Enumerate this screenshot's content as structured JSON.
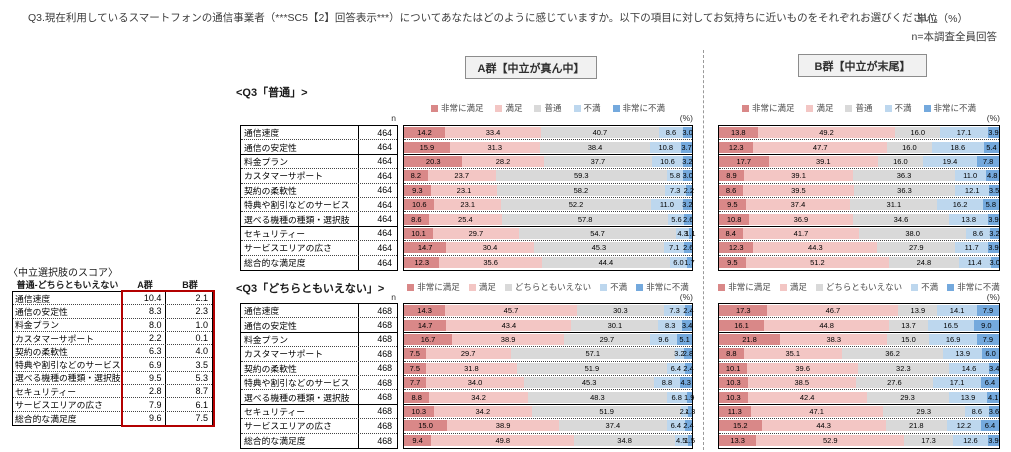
{
  "page": {
    "title": "Q3.現在利用しているスマートフォンの通信事業者（***SC5【2】回答表示***）についてあなたはどのように感じていますか。以下の項目に対してお気持ちに近いものをそれぞれお選びください。",
    "unit_label": "単位（%）",
    "n_note": "n=本調査全員回答",
    "group_a_header": "A群【中立が真ん中】",
    "group_b_header": "B群【中立が末尾】",
    "n_col_header": "n",
    "pct_label": "(%)"
  },
  "colors": {
    "series": [
      "#D98888",
      "#F3C6C4",
      "#D9D9D9",
      "#BDD7EE",
      "#74A9DD"
    ],
    "score_box_border": "#B30000",
    "header_box_bg": "#F1F1F1",
    "header_box_border": "#8C8C8C"
  },
  "score_table": {
    "title": "〈中立選択肢のスコア〉",
    "col_header": "普通-どちらともいえない",
    "col_a": "A群",
    "col_b": "B群",
    "rows": [
      {
        "label": "通信速度",
        "a": 10.4,
        "b": 2.1
      },
      {
        "label": "通信の安定性",
        "a": 8.3,
        "b": 2.3
      },
      {
        "label": "料金プラン",
        "a": 8.0,
        "b": 1.0
      },
      {
        "label": "カスタマーサポート",
        "a": 2.2,
        "b": 0.1
      },
      {
        "label": "契約の柔軟性",
        "a": 6.3,
        "b": 4.0
      },
      {
        "label": "特典や割引などのサービス",
        "a": 6.9,
        "b": 3.5
      },
      {
        "label": "選べる機種の種類・選択肢",
        "a": 9.5,
        "b": 5.3
      },
      {
        "label": "セキュリティー",
        "a": 2.8,
        "b": 8.7
      },
      {
        "label": "サービスエリアの広さ",
        "a": 7.9,
        "b": 6.1
      },
      {
        "label": "総合的な満足度",
        "a": 9.6,
        "b": 7.5
      }
    ]
  },
  "chart_data": [
    {
      "type": "bar",
      "subtype": "stacked-horizontal-100pct",
      "title": "<Q3「普通」>",
      "legend": [
        "非常に満足",
        "満足",
        "普通",
        "不満",
        "非常に不満"
      ],
      "n": 464,
      "unit": "%",
      "group_separators_after": [
        1,
        6
      ],
      "categories": [
        "通信速度",
        "通信の安定性",
        "料金プラン",
        "カスタマーサポート",
        "契約の柔軟性",
        "特典や割引などのサービス",
        "選べる機種の種類・選択肢",
        "セキュリティー",
        "サービスエリアの広さ",
        "総合的な満足度"
      ],
      "panels": [
        {
          "panel": "A群【中立が真ん中】",
          "rows": [
            [
              14.2,
              33.4,
              40.7,
              8.6,
              3.0
            ],
            [
              15.9,
              31.3,
              38.4,
              10.8,
              3.7
            ],
            [
              20.3,
              28.2,
              37.7,
              10.6,
              3.2
            ],
            [
              8.2,
              23.7,
              59.3,
              5.8,
              3.0
            ],
            [
              9.3,
              23.1,
              58.2,
              7.3,
              2.2
            ],
            [
              10.6,
              23.1,
              52.2,
              11.0,
              3.2
            ],
            [
              8.6,
              25.4,
              57.8,
              5.6,
              2.6
            ],
            [
              10.1,
              29.7,
              54.7,
              4.3,
              1.1
            ],
            [
              14.7,
              30.4,
              45.3,
              7.1,
              2.6
            ],
            [
              12.3,
              35.6,
              44.4,
              6.0,
              1.7
            ]
          ]
        },
        {
          "panel": "B群【中立が末尾】",
          "rows": [
            [
              13.8,
              49.2,
              16.0,
              17.1,
              3.9
            ],
            [
              12.3,
              47.7,
              16.0,
              18.6,
              5.4
            ],
            [
              17.7,
              39.1,
              16.0,
              19.4,
              7.8
            ],
            [
              8.9,
              39.1,
              36.3,
              11.0,
              4.8
            ],
            [
              8.6,
              39.5,
              36.3,
              12.1,
              3.5
            ],
            [
              9.5,
              37.4,
              31.1,
              16.2,
              5.8
            ],
            [
              10.8,
              36.9,
              34.6,
              13.8,
              3.9
            ],
            [
              8.4,
              41.7,
              38.0,
              8.6,
              3.2
            ],
            [
              12.3,
              44.3,
              27.9,
              11.7,
              3.9
            ],
            [
              9.5,
              51.2,
              24.8,
              11.4,
              3.0
            ]
          ]
        }
      ]
    },
    {
      "type": "bar",
      "subtype": "stacked-horizontal-100pct",
      "title": "<Q3「どちらともいえない」>",
      "legend": [
        "非常に満足",
        "満足",
        "どちらともいえない",
        "不満",
        "非常に不満"
      ],
      "n": 468,
      "unit": "%",
      "group_separators_after": [
        1,
        6
      ],
      "categories": [
        "通信速度",
        "通信の安定性",
        "料金プラン",
        "カスタマーサポート",
        "契約の柔軟性",
        "特典や割引などのサービス",
        "選べる機種の種類・選択肢",
        "セキュリティー",
        "サービスエリアの広さ",
        "総合的な満足度"
      ],
      "panels": [
        {
          "panel": "A群【中立が真ん中】",
          "rows": [
            [
              14.3,
              45.7,
              30.3,
              7.3,
              2.4
            ],
            [
              14.7,
              43.4,
              30.1,
              8.3,
              3.4
            ],
            [
              16.7,
              38.9,
              29.7,
              9.6,
              5.1
            ],
            [
              7.5,
              29.7,
              57.1,
              3.2,
              2.8
            ],
            [
              7.5,
              31.8,
              51.9,
              6.4,
              2.4
            ],
            [
              7.7,
              34.0,
              45.3,
              8.8,
              4.3
            ],
            [
              8.8,
              34.2,
              48.3,
              6.8,
              1.9
            ],
            [
              10.3,
              34.2,
              51.9,
              2.4,
              1.3
            ],
            [
              15.0,
              38.9,
              37.4,
              6.4,
              2.4
            ],
            [
              9.4,
              49.8,
              34.8,
              4.5,
              1.5
            ]
          ]
        },
        {
          "panel": "B群【中立が末尾】",
          "rows": [
            [
              17.3,
              46.7,
              13.9,
              14.1,
              7.9
            ],
            [
              16.1,
              44.8,
              13.7,
              16.5,
              9.0
            ],
            [
              21.8,
              38.3,
              15.0,
              16.9,
              7.9
            ],
            [
              8.8,
              35.1,
              36.2,
              13.9,
              6.0
            ],
            [
              10.1,
              39.6,
              32.3,
              14.6,
              3.4
            ],
            [
              10.3,
              38.5,
              27.6,
              17.1,
              6.4
            ],
            [
              10.3,
              42.4,
              29.3,
              13.9,
              4.1
            ],
            [
              11.3,
              47.1,
              29.3,
              8.6,
              3.6
            ],
            [
              15.2,
              44.3,
              21.8,
              12.2,
              6.4
            ],
            [
              13.3,
              52.9,
              17.3,
              12.6,
              3.9
            ]
          ]
        }
      ]
    }
  ]
}
